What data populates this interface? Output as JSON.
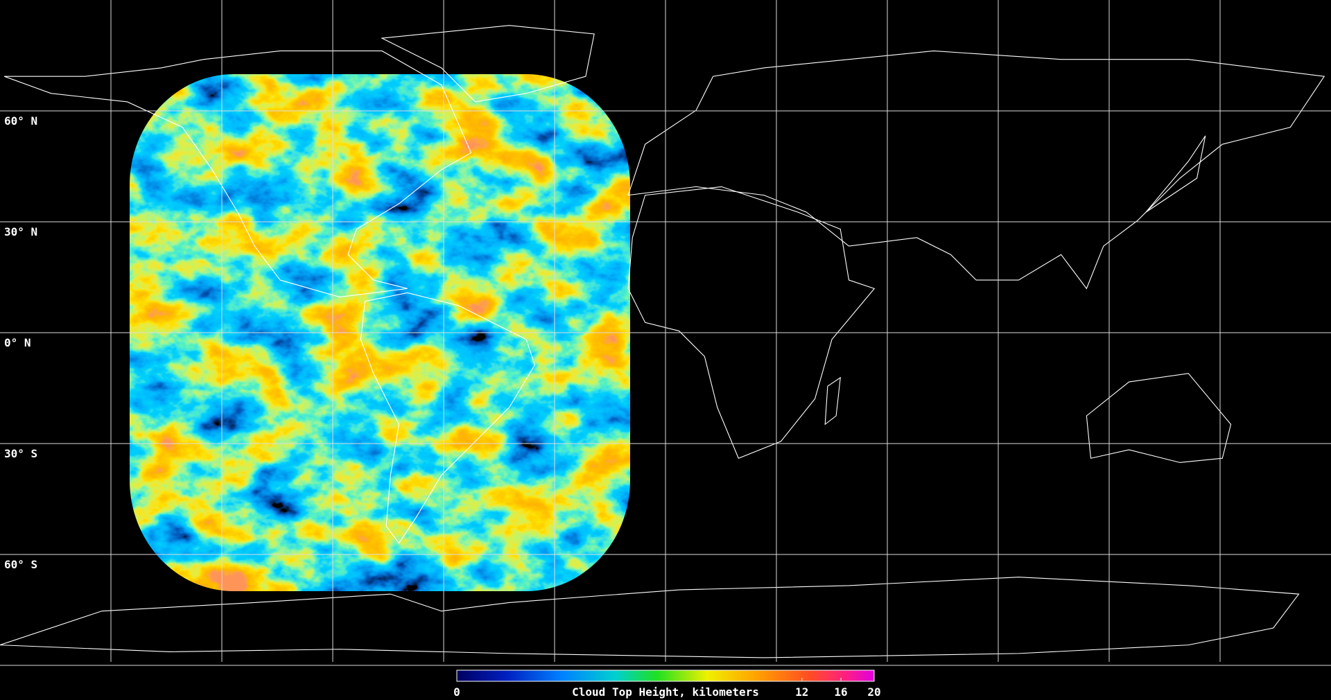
{
  "map": {
    "latitude_labels": [
      "60° N",
      "30° N",
      "0° N",
      "30° S",
      "60° S"
    ]
  },
  "colorbar": {
    "label": "Cloud Top Height, kilometers",
    "range": [
      0,
      20
    ],
    "ticks": [
      0,
      12,
      16,
      20
    ]
  }
}
